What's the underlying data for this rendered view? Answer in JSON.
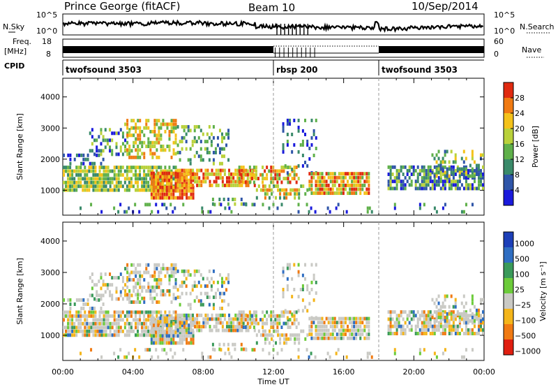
{
  "header": {
    "station": "Prince George (fitACF)",
    "beam": "Beam 10",
    "date": "10/Sep/2014"
  },
  "panels": {
    "nsky": {
      "label": "N.Sky",
      "ticks_left": [
        "10^5",
        "10^0"
      ],
      "ticks_right": [
        "10^5",
        "10^0"
      ],
      "right_label": "N.Search"
    },
    "freq": {
      "label_line1": "Freq.",
      "label_line2": "[MHz]",
      "ticks_left": [
        "18",
        "8"
      ],
      "ticks_right": [
        "60",
        "0"
      ],
      "right_label": "Nave"
    },
    "cpid": {
      "label": "CPID",
      "segments": [
        {
          "label": "twofsound 3503",
          "start_hour": 0
        },
        {
          "label": "rbsp 200",
          "start_hour": 12
        },
        {
          "label": "twofsound 3503",
          "start_hour": 18
        }
      ]
    }
  },
  "chart_data": [
    {
      "type": "heatmap",
      "name": "Power",
      "ylabel": "Slant Range [km]",
      "yticks": [
        1000,
        2000,
        3000,
        4000
      ],
      "ylim": [
        200,
        4600
      ],
      "xlim_hours": [
        0,
        24
      ],
      "colorbar_label": "Power [dB]",
      "colorbar_ticks": [
        4,
        8,
        12,
        16,
        20,
        24,
        28
      ],
      "colorbar_range": [
        0,
        32
      ],
      "colors": [
        "#1a1adc",
        "#2f55a8",
        "#3a8a6a",
        "#5fb04a",
        "#b9d13a",
        "#f4c21a",
        "#f07a12",
        "#e02a10"
      ],
      "gap_hours": [
        [
          17.6,
          18.3
        ]
      ]
    },
    {
      "type": "heatmap",
      "name": "Velocity",
      "ylabel": "Slant Range [km]",
      "yticks": [
        1000,
        2000,
        3000,
        4000
      ],
      "ylim": [
        200,
        4600
      ],
      "xlim_hours": [
        0,
        24
      ],
      "colorbar_label": "Velocity [m s⁻¹]",
      "colorbar_ticks": [
        "1000",
        "500",
        "100",
        "25",
        "−25",
        "−100",
        "−500",
        "−1000"
      ],
      "colors": [
        "#1c3fb8",
        "#2f6ec2",
        "#3a9a5a",
        "#6ccb3a",
        "#c9c9c4",
        "#f4b51a",
        "#f07a12",
        "#e01e10"
      ],
      "gap_hours": [
        [
          17.6,
          18.3
        ]
      ]
    }
  ],
  "time_axis": {
    "ticks": [
      "00:00",
      "04:00",
      "08:00",
      "12:00",
      "16:00",
      "20:00",
      "00:00"
    ],
    "label": "Time UT"
  },
  "colors": {
    "divider": "#9a9a9a"
  }
}
